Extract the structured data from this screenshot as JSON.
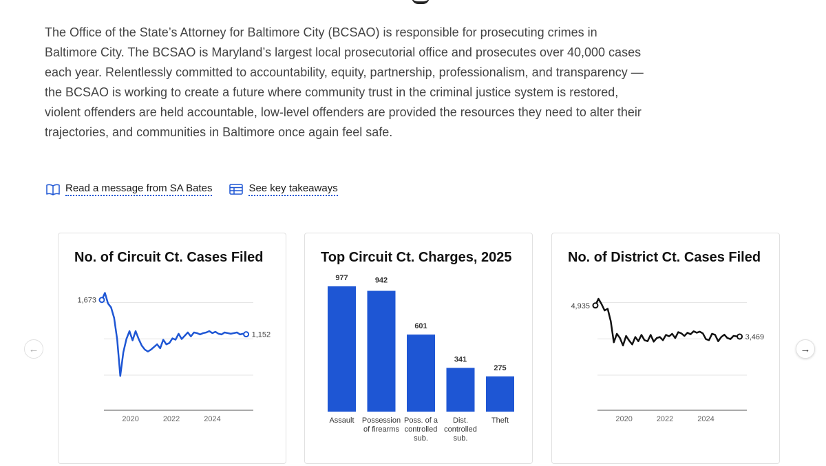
{
  "intro": {
    "text": "The Office of the State’s Attorney for Baltimore City (BCSAO) is responsible for prosecuting crimes in Baltimore City. The BCSAO is Maryland’s largest local prosecutorial office and prosecutes over 40,000 cases each year. Relentlessly committed to accountability, equity, partnership, professionalism, and transparency — the BCSAO is working to create a future where community trust in the criminal justice system is restored, violent offenders are held accountable, low-level offenders are provided the resources they need to alter their trajectories, and communities in Baltimore once again feel safe."
  },
  "links": {
    "message": {
      "label": "Read a message from SA Bates",
      "icon": "book-icon"
    },
    "takeaways": {
      "label": "See key takeaways",
      "icon": "table-icon"
    }
  },
  "colors": {
    "accent": "#1e56d4",
    "black_series": "#111111",
    "grid": "#e6e6e6",
    "axis": "#555555"
  },
  "nav": {
    "prev_icon": "arrow-left-icon",
    "next_icon": "arrow-right-icon"
  },
  "chart_data": [
    {
      "type": "line",
      "title": "No. of Circuit Ct. Cases Filed",
      "xlabel": "",
      "ylabel": "",
      "xticks": [
        "2020",
        "2022",
        "2024"
      ],
      "xlim": [
        2018.5,
        2026.0
      ],
      "ylim": [
        0,
        1900
      ],
      "grid": true,
      "series": [
        {
          "color": "#1e56d4",
          "x": [
            2018.6,
            2018.75,
            2018.9,
            2019.05,
            2019.2,
            2019.35,
            2019.5,
            2019.65,
            2019.8,
            2019.95,
            2020.1,
            2020.25,
            2020.4,
            2020.55,
            2020.7,
            2020.85,
            2021.0,
            2021.15,
            2021.3,
            2021.45,
            2021.6,
            2021.75,
            2021.9,
            2022.05,
            2022.2,
            2022.35,
            2022.5,
            2022.65,
            2022.8,
            2022.95,
            2023.1,
            2023.25,
            2023.4,
            2023.55,
            2023.7,
            2023.85,
            2024.0,
            2024.15,
            2024.3,
            2024.45,
            2024.6,
            2024.75,
            2024.9,
            2025.05,
            2025.2,
            2025.35,
            2025.5,
            2025.65
          ],
          "values": [
            1673,
            1780,
            1620,
            1560,
            1400,
            1070,
            520,
            880,
            1080,
            1200,
            1060,
            1200,
            1080,
            980,
            920,
            890,
            920,
            960,
            1000,
            940,
            1070,
            1000,
            1020,
            1090,
            1070,
            1160,
            1080,
            1130,
            1180,
            1120,
            1180,
            1170,
            1150,
            1170,
            1180,
            1200,
            1170,
            1190,
            1160,
            1150,
            1180,
            1170,
            1160,
            1170,
            1180,
            1150,
            1160,
            1152
          ],
          "start_label": "1,673",
          "end_label": "1,152"
        }
      ]
    },
    {
      "type": "bar",
      "title": "Top Circuit Ct. Charges, 2025",
      "categories": [
        [
          "Assault"
        ],
        [
          "Possession",
          "of firearms"
        ],
        [
          "Poss. of a",
          "controlled",
          "sub."
        ],
        [
          "Dist.",
          "controlled",
          "sub."
        ],
        [
          "Theft"
        ]
      ],
      "values": [
        977,
        942,
        601,
        341,
        275
      ],
      "value_labels": [
        "977",
        "942",
        "601",
        "341",
        "275"
      ],
      "ylim": [
        0,
        977
      ],
      "color": "#1e56d4"
    },
    {
      "type": "line",
      "title": "No. of District Ct. Cases Filed",
      "xlabel": "",
      "ylabel": "",
      "xticks": [
        "2020",
        "2022",
        "2024"
      ],
      "xlim": [
        2018.5,
        2026.0
      ],
      "ylim": [
        0,
        5900
      ],
      "grid": true,
      "series": [
        {
          "color": "#111111",
          "x": [
            2018.6,
            2018.75,
            2018.9,
            2019.05,
            2019.2,
            2019.35,
            2019.5,
            2019.65,
            2019.8,
            2019.95,
            2020.1,
            2020.25,
            2020.4,
            2020.55,
            2020.7,
            2020.85,
            2021.0,
            2021.15,
            2021.3,
            2021.45,
            2021.6,
            2021.75,
            2021.9,
            2022.05,
            2022.2,
            2022.35,
            2022.5,
            2022.65,
            2022.8,
            2022.95,
            2023.1,
            2023.25,
            2023.4,
            2023.55,
            2023.7,
            2023.85,
            2024.0,
            2024.15,
            2024.3,
            2024.45,
            2024.6,
            2024.75,
            2024.9,
            2025.05,
            2025.2,
            2025.35,
            2025.5,
            2025.65
          ],
          "values": [
            4935,
            5250,
            5000,
            4700,
            4780,
            4200,
            3200,
            3600,
            3400,
            3050,
            3500,
            3280,
            3100,
            3450,
            3250,
            3550,
            3300,
            3250,
            3550,
            3230,
            3400,
            3450,
            3300,
            3550,
            3480,
            3600,
            3400,
            3680,
            3620,
            3500,
            3650,
            3580,
            3720,
            3650,
            3700,
            3620,
            3350,
            3300,
            3600,
            3550,
            3250,
            3450,
            3560,
            3400,
            3350,
            3500,
            3480,
            3469
          ],
          "start_label": "4,935",
          "end_label": "3,469"
        }
      ]
    }
  ]
}
